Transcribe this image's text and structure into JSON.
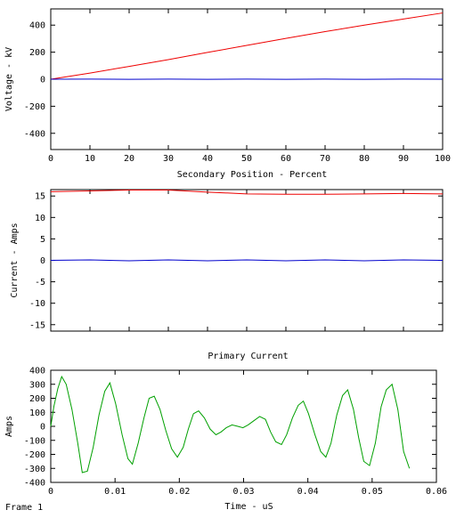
{
  "frame_label": "Frame 1",
  "colors": {
    "red": "#ee0000",
    "blue": "#0000cc",
    "green": "#00a000"
  },
  "chart_data": [
    {
      "id": "voltage",
      "type": "line",
      "title": "",
      "xlabel": "Secondary Position - Percent",
      "ylabel": "Voltage - kV",
      "xlim": [
        0,
        100
      ],
      "ylim": [
        -520,
        520
      ],
      "xticks": [
        0,
        10,
        20,
        30,
        40,
        50,
        60,
        70,
        80,
        90,
        100
      ],
      "yticks": [
        -400,
        -200,
        0,
        200,
        400
      ],
      "grid": false,
      "series": [
        {
          "color": "#ee0000",
          "x": [
            0,
            10,
            20,
            30,
            40,
            50,
            60,
            70,
            80,
            90,
            100
          ],
          "y": [
            0,
            45,
            95,
            145,
            198,
            250,
            302,
            352,
            400,
            445,
            490
          ]
        },
        {
          "color": "#0000cc",
          "x": [
            0,
            10,
            20,
            30,
            40,
            50,
            60,
            70,
            80,
            90,
            100
          ],
          "y": [
            0,
            1,
            -1,
            1,
            -1,
            1,
            -1,
            1,
            -1,
            1,
            0
          ]
        }
      ]
    },
    {
      "id": "current",
      "type": "line",
      "title": "",
      "xlabel": "",
      "ylabel": "Current - Amps",
      "xlim": [
        0,
        100
      ],
      "ylim": [
        -16.5,
        16.5
      ],
      "xticks": [
        0,
        10,
        20,
        30,
        40,
        50,
        60,
        70,
        80,
        90,
        100
      ],
      "xticklabels": false,
      "yticks": [
        -15,
        -10,
        -5,
        0,
        5,
        10,
        15
      ],
      "grid": false,
      "series": [
        {
          "color": "#ee0000",
          "x": [
            0,
            10,
            20,
            30,
            40,
            50,
            60,
            70,
            80,
            90,
            100
          ],
          "y": [
            16.0,
            16.2,
            16.4,
            16.4,
            15.9,
            15.5,
            15.4,
            15.4,
            15.5,
            15.6,
            15.5
          ]
        },
        {
          "color": "#0000cc",
          "x": [
            0,
            10,
            20,
            30,
            40,
            50,
            60,
            70,
            80,
            90,
            100
          ],
          "y": [
            0,
            0.1,
            -0.1,
            0.1,
            -0.1,
            0.1,
            -0.1,
            0.1,
            -0.1,
            0.1,
            0
          ]
        }
      ]
    },
    {
      "id": "primary",
      "type": "line",
      "title": "Primary Current",
      "xlabel": "Time - uS",
      "ylabel": "Amps",
      "xlim": [
        0,
        0.06
      ],
      "ylim": [
        -400,
        400
      ],
      "xticks": [
        0,
        0.01,
        0.02,
        0.03,
        0.04,
        0.05,
        0.06
      ],
      "yticks": [
        -400,
        -300,
        -200,
        -100,
        0,
        100,
        200,
        300,
        400
      ],
      "grid": false,
      "series": [
        {
          "color": "#00a000",
          "x": [
            0,
            0.00048,
            0.0011,
            0.0017,
            0.0024,
            0.0033,
            0.0042,
            0.0049,
            0.0057,
            0.0066,
            0.0075,
            0.0084,
            0.0092,
            0.0101,
            0.0111,
            0.012,
            0.0127,
            0.0136,
            0.0145,
            0.0153,
            0.0161,
            0.017,
            0.0179,
            0.0188,
            0.0197,
            0.0206,
            0.0214,
            0.0222,
            0.023,
            0.0239,
            0.0248,
            0.0257,
            0.0265,
            0.0273,
            0.0282,
            0.0291,
            0.0299,
            0.0307,
            0.0316,
            0.0325,
            0.0334,
            0.0342,
            0.035,
            0.0359,
            0.0367,
            0.0376,
            0.0385,
            0.0393,
            0.0401,
            0.0411,
            0.042,
            0.0428,
            0.0436,
            0.0445,
            0.0454,
            0.0462,
            0.0471,
            0.0479,
            0.0487,
            0.0496,
            0.0505,
            0.0514,
            0.0522,
            0.0531,
            0.054,
            0.0549,
            0.0558
          ],
          "y": [
            0,
            140,
            270,
            355,
            300,
            120,
            -120,
            -330,
            -320,
            -150,
            80,
            250,
            310,
            160,
            -60,
            -230,
            -270,
            -120,
            60,
            200,
            215,
            120,
            -30,
            -160,
            -220,
            -150,
            -20,
            90,
            110,
            60,
            -20,
            -60,
            -40,
            -10,
            10,
            0,
            -10,
            10,
            40,
            70,
            50,
            -40,
            -110,
            -130,
            -60,
            60,
            150,
            180,
            90,
            -60,
            -180,
            -220,
            -120,
            80,
            220,
            260,
            120,
            -80,
            -250,
            -280,
            -120,
            140,
            260,
            300,
            120,
            -180,
            -300
          ]
        }
      ]
    }
  ]
}
